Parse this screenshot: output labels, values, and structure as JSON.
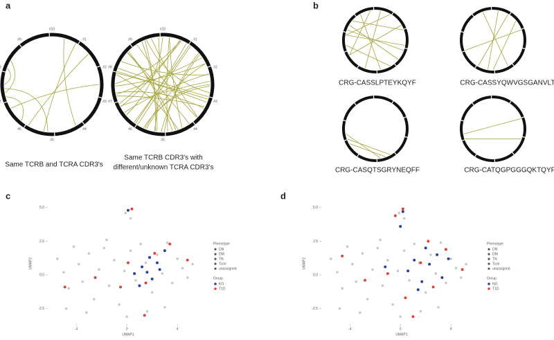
{
  "panels": {
    "a": {
      "label": "a",
      "segment_labels": [
        "#10",
        "#1",
        "#2",
        "#3",
        "#4",
        "#5",
        "#6",
        "#7",
        "#8",
        "#9"
      ],
      "caption_left": "Same TCRB and TCRA CDR3's",
      "caption_right": [
        "Same TCRB CDR3's with",
        "different/unknown TCRA CDR3's"
      ]
    },
    "b": {
      "label": "b",
      "captions": [
        "CRG-CASSLPTEYKQYF",
        "CRG-CASSYQWVGSGANVLTF",
        "CRG-CASQTSGRYNEQFF",
        "CRG-CATQGPGGGQKTQYF"
      ]
    },
    "c": {
      "label": "c"
    },
    "d": {
      "label": "d"
    }
  },
  "legend": {
    "phenotype_title": "Phenotype",
    "phenotype": [
      "DN",
      "DM",
      "TN",
      "Tcon",
      "unassigned"
    ],
    "group_title": "Group"
  },
  "chart_data": [
    {
      "type": "scatter",
      "xlabel": "UMAP1",
      "ylabel": "UMAP2",
      "xlim": [
        -6.2,
        6.4
      ],
      "ylim": [
        -3.6,
        5.3
      ],
      "xticks": [
        -4,
        0,
        4
      ],
      "yticks": [
        -2.5,
        {
          "value": 0,
          "label": "0.0"
        },
        2.5,
        {
          "value": 5,
          "label": "5.0"
        }
      ],
      "series": [
        {
          "color": "#c8c8c8",
          "x": [
            -5.5,
            -5,
            -4.6,
            -4.2,
            -3.8,
            -3.5,
            -3,
            -2.6,
            -2.2,
            -1.8,
            -1.4,
            -1,
            -0.6,
            -0.2,
            0.3,
            0.7,
            1.1,
            1.5,
            2,
            2.4,
            2.8,
            3.2,
            3.6,
            4,
            4.4,
            4.8,
            5.2,
            -4.8,
            -3.2,
            -1.6,
            0,
            1.6,
            3,
            -0.1,
            0.3
          ],
          "y": [
            1.2,
            0.2,
            -1,
            2.1,
            0.8,
            -0.5,
            1.6,
            -1.8,
            0.4,
            2,
            -0.8,
            1.1,
            -2.2,
            0.3,
            1.8,
            -0.4,
            2.3,
            0.9,
            -1.3,
            1.5,
            0.1,
            2.4,
            -0.6,
            1.2,
            0.5,
            -0.2,
            0.8,
            -2.5,
            -2.8,
            2.6,
            -3.1,
            -2.7,
            -2.4,
            4.6,
            4.2
          ]
        },
        {
          "name": "KO",
          "color": "#2b3fa0",
          "x": [
            1.2,
            1.6,
            2,
            2.4,
            1.0,
            1.8,
            2.6,
            0.6,
            3,
            0.1
          ],
          "y": [
            0.6,
            0.2,
            -0.3,
            0.9,
            -0.8,
            1.3,
            0.4,
            0.1,
            1.8,
            4.8
          ]
        },
        {
          "name": "T1D",
          "color": "#e0413a",
          "x": [
            -4.9,
            -2.5,
            -0.5,
            1.4,
            2.2,
            3.4,
            4.8,
            0.4,
            0.1,
            1.5
          ],
          "y": [
            -0.9,
            -0.2,
            -0.9,
            -3.0,
            1.6,
            2.3,
            1.1,
            4.9,
            0.9,
            -0.6
          ]
        }
      ]
    },
    {
      "type": "scatter",
      "xlabel": "UMAP1",
      "ylabel": "UMAP2",
      "xlim": [
        -6.2,
        6.4
      ],
      "ylim": [
        -3.6,
        5.3
      ],
      "xticks": [
        -4,
        0,
        4
      ],
      "yticks": [
        -2.5,
        {
          "value": 0,
          "label": "0.0"
        },
        2.5,
        {
          "value": 5,
          "label": "5.0"
        }
      ],
      "series": [
        {
          "color": "#c8c8c8",
          "x": [
            -5.5,
            -5,
            -4.6,
            -4.2,
            -3.8,
            -3.5,
            -3,
            -2.6,
            -2.2,
            -1.8,
            -1.4,
            -1,
            -0.6,
            -0.2,
            0.3,
            0.7,
            1.1,
            1.5,
            2,
            2.4,
            2.8,
            3.2,
            3.6,
            4,
            4.4,
            4.8,
            5.2,
            -4.8,
            -3.2,
            -1.6,
            0,
            1.6,
            3,
            -0.1,
            0.3
          ],
          "y": [
            1.2,
            0.2,
            -1,
            2.1,
            0.8,
            -0.5,
            1.6,
            -1.8,
            0.4,
            2,
            -0.8,
            1.1,
            -2.2,
            0.3,
            1.8,
            -0.4,
            2.3,
            0.9,
            -1.3,
            1.5,
            0.1,
            2.4,
            -0.6,
            1.2,
            0.5,
            -0.2,
            0.8,
            -2.5,
            -2.8,
            2.6,
            -3.1,
            -2.7,
            -2.4,
            4.6,
            4.2
          ]
        },
        {
          "name": "NO",
          "color": "#2b3fa0",
          "x": [
            0.6,
            1.1,
            1.7,
            2.3,
            2.9,
            3.3,
            -1.2,
            0.2,
            1.4,
            2.0,
            3.8,
            0.0
          ],
          "y": [
            0.3,
            1.1,
            -0.5,
            0.8,
            1.5,
            -0.2,
            0.6,
            4.7,
            -1.1,
            2.0,
            1.2,
            3.6
          ]
        },
        {
          "name": "T1D",
          "color": "#e0413a",
          "x": [
            -4.6,
            -2.8,
            -1.0,
            0.4,
            1.6,
            2.6,
            3.6,
            4.9,
            -0.4,
            1.0,
            2.2,
            0.2
          ],
          "y": [
            1.4,
            -0.4,
            0.1,
            -1.7,
            0.9,
            -0.9,
            1.9,
            0.4,
            4.4,
            -3.1,
            2.5,
            4.9
          ]
        }
      ]
    }
  ]
}
